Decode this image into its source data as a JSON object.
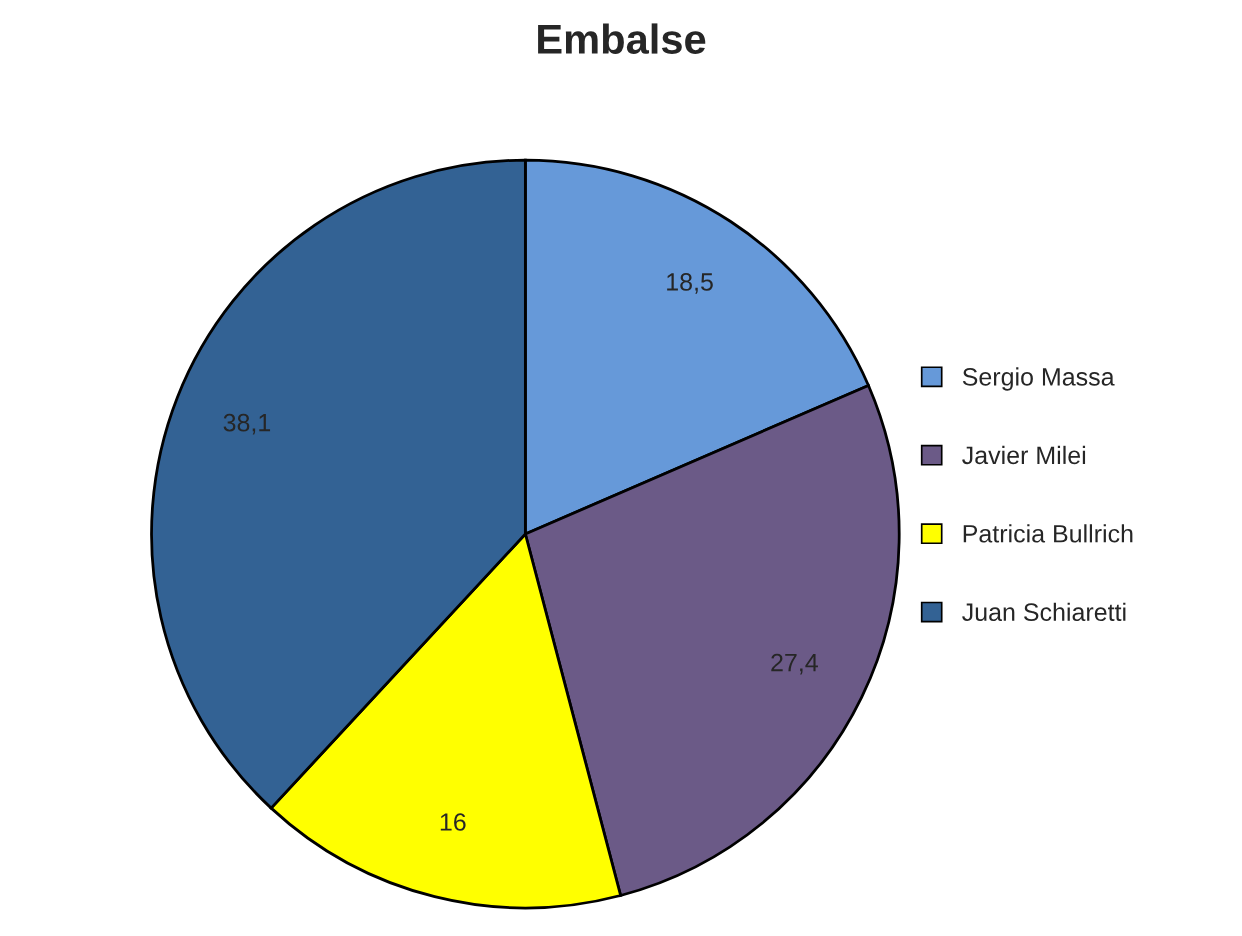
{
  "chart_data": {
    "type": "pie",
    "title": "Embalse",
    "categories": [
      "Sergio Massa",
      "Javier Milei",
      "Patricia Bullrich",
      "Juan Schiaretti"
    ],
    "values": [
      18.5,
      27.4,
      16,
      38.1
    ],
    "value_labels": [
      "18,5",
      "27,4",
      "16",
      "38,1"
    ],
    "colors": [
      "#6699d9",
      "#6b5a87",
      "#ffff00",
      "#336294"
    ],
    "legend": "right"
  }
}
